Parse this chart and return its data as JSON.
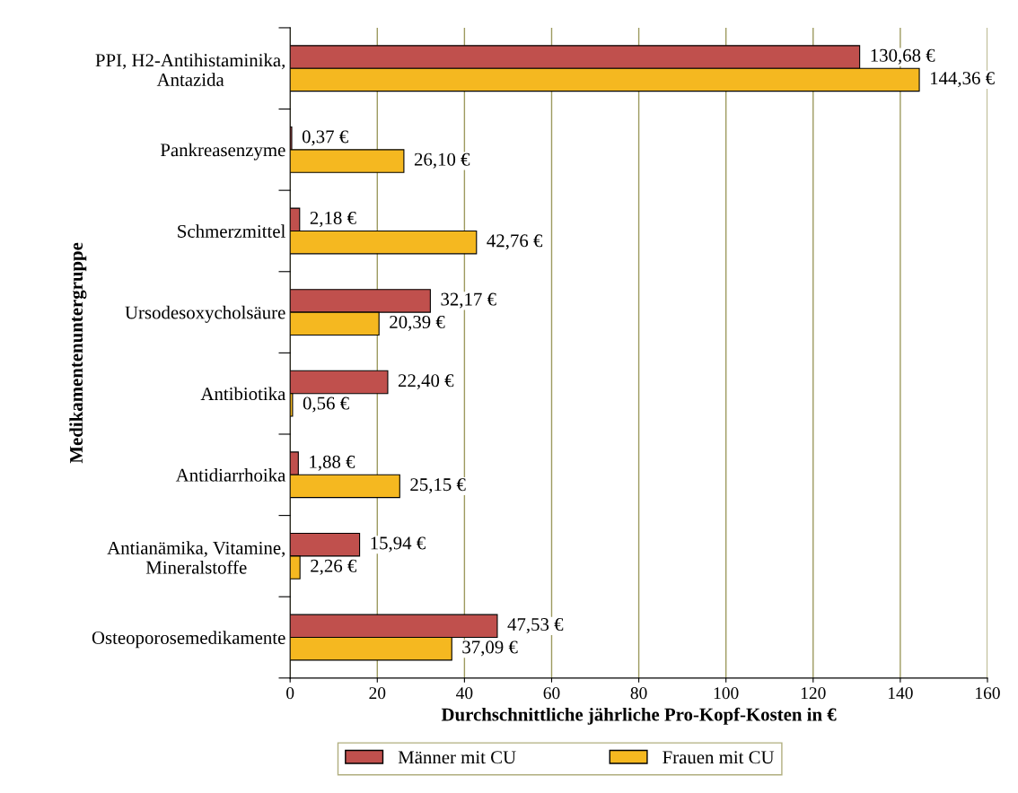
{
  "chart_data": {
    "type": "bar",
    "orientation": "horizontal",
    "categories": [
      "PPI, H2-Antihistaminika,\nAntazida",
      "Pankreasenzyme",
      "Schmerzmittel",
      "Ursodesoxycholsäure",
      "Antibiotika",
      "Antidiarrhoika",
      "Antianämika, Vitamine,\nMineralstoffe",
      "Osteoporosemedikamente"
    ],
    "series": [
      {
        "name": "Männer mit CU",
        "color": "#c0504d",
        "values": [
          130.68,
          0.37,
          2.18,
          32.17,
          22.4,
          1.88,
          15.94,
          47.53
        ],
        "value_labels": [
          "130,68 €",
          "0,37 €",
          "2,18 €",
          "32,17 €",
          "22,40 €",
          "1,88 €",
          "15,94 €",
          "47,53 €"
        ]
      },
      {
        "name": "Frauen mit CU",
        "color": "#f5b820",
        "values": [
          144.36,
          26.1,
          42.76,
          20.39,
          0.56,
          25.15,
          2.26,
          37.09
        ],
        "value_labels": [
          "144,36 €",
          "26,10 €",
          "42,76 €",
          "20,39 €",
          "0,56 €",
          "25,15 €",
          "2,26 €",
          "37,09 €"
        ]
      }
    ],
    "xlabel": "Durchschnittliche jährliche Pro-Kopf-Kosten in €",
    "ylabel": "Medikamentenuntergruppe",
    "xlim": [
      0,
      160
    ],
    "xticks": [
      0,
      20,
      40,
      60,
      80,
      100,
      120,
      140,
      160
    ],
    "grid": "x",
    "legend": "bottom"
  }
}
